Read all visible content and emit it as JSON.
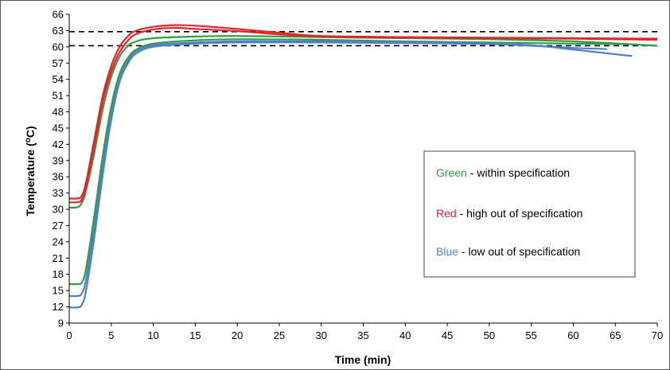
{
  "chart_data": {
    "type": "line",
    "xlabel": "Time (min)",
    "ylabel_main": "Temperature (",
    "ylabel_sup": "o",
    "ylabel_end": "C)",
    "xlim": [
      0,
      70
    ],
    "ylim": [
      9,
      66
    ],
    "xticks": [
      0,
      5,
      10,
      15,
      20,
      25,
      30,
      35,
      40,
      45,
      50,
      55,
      60,
      65,
      70
    ],
    "yticks": [
      9,
      12,
      15,
      18,
      21,
      24,
      27,
      30,
      33,
      36,
      39,
      42,
      45,
      48,
      51,
      54,
      57,
      60,
      63,
      66
    ],
    "reference_lines": [
      {
        "y": 62.8,
        "style": "dashed",
        "color": "#000000"
      },
      {
        "y": 60.2,
        "style": "dashed",
        "color": "#000000"
      }
    ],
    "legend": {
      "placement": "right-center",
      "entries": [
        {
          "color_word": "Green",
          "text": " - within specification",
          "color": "#2e9e45"
        },
        {
          "color_word": "Red",
          "text": " - high out of specification",
          "color": "#e0262b"
        },
        {
          "color_word": "Blue",
          "text": " - low out of specification",
          "color": "#4f7fc4"
        }
      ]
    },
    "series": [
      {
        "group": "Green",
        "color": "#2e9e45",
        "points": [
          [
            0,
            30.3
          ],
          [
            1,
            30.4
          ],
          [
            1.5,
            31.2
          ],
          [
            2,
            33.5
          ],
          [
            3,
            40.5
          ],
          [
            4,
            48.5
          ],
          [
            5,
            54.5
          ],
          [
            6,
            58.2
          ],
          [
            7,
            60.2
          ],
          [
            8,
            61.0
          ],
          [
            10,
            61.6
          ],
          [
            15,
            61.9
          ],
          [
            20,
            62.0
          ],
          [
            30,
            61.8
          ],
          [
            40,
            61.6
          ],
          [
            50,
            61.4
          ],
          [
            60,
            61.0
          ],
          [
            70,
            60.2
          ]
        ]
      },
      {
        "group": "Green",
        "color": "#2e9e45",
        "points": [
          [
            0,
            16.2
          ],
          [
            1,
            16.2
          ],
          [
            1.5,
            16.5
          ],
          [
            2,
            19.0
          ],
          [
            3,
            29.0
          ],
          [
            4,
            40.0
          ],
          [
            5,
            49.0
          ],
          [
            6,
            55.0
          ],
          [
            7,
            58.0
          ],
          [
            8,
            59.5
          ],
          [
            10,
            60.6
          ],
          [
            15,
            61.2
          ],
          [
            20,
            61.4
          ],
          [
            30,
            61.3
          ],
          [
            40,
            61.0
          ],
          [
            50,
            60.8
          ],
          [
            60,
            60.6
          ],
          [
            66,
            60.5
          ]
        ]
      },
      {
        "group": "Red",
        "color": "#e0262b",
        "points": [
          [
            0,
            32.0
          ],
          [
            1,
            32.0
          ],
          [
            1.5,
            32.5
          ],
          [
            2,
            35.0
          ],
          [
            3,
            43.0
          ],
          [
            4,
            51.0
          ],
          [
            5,
            56.5
          ],
          [
            6,
            60.0
          ],
          [
            7,
            62.0
          ],
          [
            8,
            63.0
          ],
          [
            10,
            63.7
          ],
          [
            12.5,
            64.0
          ],
          [
            15,
            63.9
          ],
          [
            20,
            63.3
          ],
          [
            25,
            62.6
          ],
          [
            30,
            62.0
          ],
          [
            40,
            61.8
          ],
          [
            50,
            61.7
          ],
          [
            60,
            61.6
          ],
          [
            70,
            61.5
          ]
        ]
      },
      {
        "group": "Red",
        "color": "#e0262b",
        "points": [
          [
            0,
            31.3
          ],
          [
            1,
            31.3
          ],
          [
            1.5,
            31.8
          ],
          [
            2,
            34.0
          ],
          [
            3,
            42.0
          ],
          [
            4,
            50.0
          ],
          [
            5,
            55.5
          ],
          [
            6,
            59.0
          ],
          [
            7,
            61.2
          ],
          [
            8,
            62.4
          ],
          [
            10,
            63.2
          ],
          [
            12.5,
            63.5
          ],
          [
            15,
            63.3
          ],
          [
            20,
            62.9
          ],
          [
            25,
            62.3
          ],
          [
            30,
            61.9
          ],
          [
            40,
            61.7
          ],
          [
            50,
            61.6
          ],
          [
            60,
            61.5
          ],
          [
            70,
            61.3
          ]
        ]
      },
      {
        "group": "Blue",
        "color": "#4f7fc4",
        "points": [
          [
            0,
            14.0
          ],
          [
            1,
            14.0
          ],
          [
            1.5,
            14.5
          ],
          [
            2,
            17.0
          ],
          [
            3,
            27.0
          ],
          [
            4,
            38.0
          ],
          [
            5,
            47.5
          ],
          [
            6,
            54.0
          ],
          [
            7,
            57.5
          ],
          [
            8,
            59.2
          ],
          [
            10,
            60.3
          ],
          [
            15,
            60.8
          ],
          [
            20,
            61.0
          ],
          [
            30,
            61.0
          ],
          [
            40,
            60.9
          ],
          [
            50,
            60.6
          ],
          [
            55,
            60.3
          ],
          [
            60,
            59.5
          ],
          [
            64,
            58.8
          ],
          [
            67,
            58.3
          ]
        ]
      },
      {
        "group": "Blue",
        "color": "#4f7fc4",
        "points": [
          [
            0,
            11.9
          ],
          [
            1,
            11.9
          ],
          [
            1.5,
            12.4
          ],
          [
            2,
            15.0
          ],
          [
            3,
            25.0
          ],
          [
            4,
            36.5
          ],
          [
            5,
            46.5
          ],
          [
            6,
            53.5
          ],
          [
            7,
            57.0
          ],
          [
            8,
            58.8
          ],
          [
            10,
            60.0
          ],
          [
            15,
            60.6
          ],
          [
            20,
            60.8
          ],
          [
            30,
            60.8
          ],
          [
            40,
            60.7
          ],
          [
            50,
            60.5
          ],
          [
            55,
            60.2
          ],
          [
            60,
            59.8
          ],
          [
            64,
            59.6
          ]
        ]
      }
    ]
  }
}
